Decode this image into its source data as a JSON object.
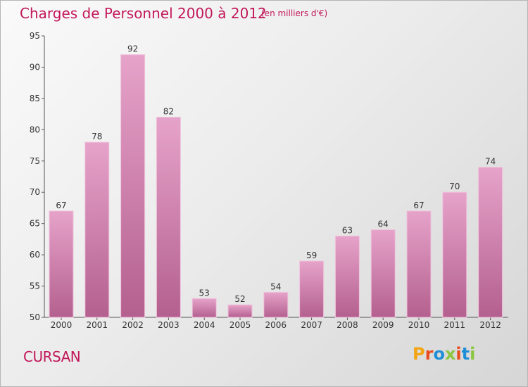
{
  "chart_data": {
    "type": "bar",
    "title": "Charges de Personnel 2000 à 2012",
    "subtitle": "(en milliers d'€)",
    "categories": [
      "2000",
      "2001",
      "2002",
      "2003",
      "2004",
      "2005",
      "2006",
      "2007",
      "2008",
      "2009",
      "2010",
      "2011",
      "2012"
    ],
    "values": [
      67,
      78,
      92,
      82,
      53,
      52,
      54,
      59,
      63,
      64,
      67,
      70,
      74
    ],
    "data_labels": [
      "67",
      "78",
      "92",
      "82",
      "53",
      "52",
      "54",
      "59",
      "63",
      "64",
      "67",
      "70",
      "74"
    ],
    "ylim": [
      50,
      95
    ],
    "yticks": [
      50,
      55,
      60,
      65,
      70,
      75,
      80,
      85,
      90,
      95
    ],
    "grid": false,
    "bar_color": "#c8609a"
  },
  "footer": {
    "town": "CURSAN",
    "logo": "Proxiti"
  },
  "colors": {
    "accent": "#c2185b",
    "logo_letters": [
      "#f2a413",
      "#e84c1e",
      "#1e8fd6",
      "#8cc63f",
      "#e84c1e",
      "#1e8fd6",
      "#8cc63f"
    ]
  }
}
